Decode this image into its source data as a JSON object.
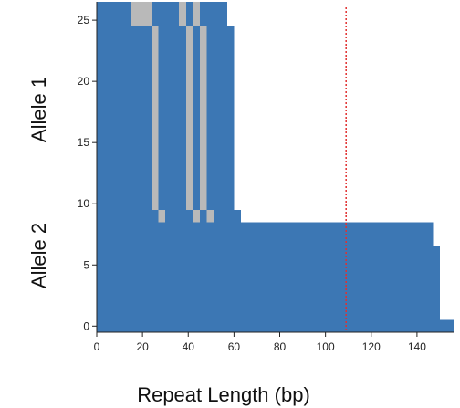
{
  "chart_data": {
    "type": "heatmap",
    "title": "",
    "xlabel": "Repeat Length (bp)",
    "ylabel_groups": [
      {
        "label": "Allele 1",
        "rows_from": 9,
        "rows_to": 26
      },
      {
        "label": "Allele 2",
        "rows_from": 0,
        "rows_to": 8
      }
    ],
    "xlim": [
      0,
      156
    ],
    "ylim": [
      -0.5,
      26.5
    ],
    "xticks": [
      0,
      20,
      40,
      60,
      80,
      100,
      120,
      140
    ],
    "yticks": [
      0,
      5,
      10,
      15,
      20,
      25
    ],
    "reference_line": {
      "x": 109,
      "color": "#e03030",
      "style": "dotted"
    },
    "colors": {
      "repeat": "#3c77b4",
      "interruption": "#b9b9b9"
    },
    "rows": [
      {
        "row": 0,
        "length": 156,
        "interruptions": []
      },
      {
        "row": 1,
        "length": 150,
        "interruptions": []
      },
      {
        "row": 2,
        "length": 150,
        "interruptions": []
      },
      {
        "row": 3,
        "length": 150,
        "interruptions": []
      },
      {
        "row": 4,
        "length": 150,
        "interruptions": []
      },
      {
        "row": 5,
        "length": 150,
        "interruptions": []
      },
      {
        "row": 6,
        "length": 150,
        "interruptions": []
      },
      {
        "row": 7,
        "length": 147,
        "interruptions": []
      },
      {
        "row": 8,
        "length": 147,
        "interruptions": []
      },
      {
        "row": 9,
        "length": 63,
        "interruptions": [
          [
            27,
            30
          ],
          [
            42,
            45
          ],
          [
            48,
            51
          ]
        ]
      },
      {
        "row": 10,
        "length": 60,
        "interruptions": [
          [
            24,
            27
          ],
          [
            39,
            42
          ],
          [
            45,
            48
          ]
        ]
      },
      {
        "row": 11,
        "length": 60,
        "interruptions": [
          [
            24,
            27
          ],
          [
            39,
            42
          ],
          [
            45,
            48
          ]
        ]
      },
      {
        "row": 12,
        "length": 60,
        "interruptions": [
          [
            24,
            27
          ],
          [
            39,
            42
          ],
          [
            45,
            48
          ]
        ]
      },
      {
        "row": 13,
        "length": 60,
        "interruptions": [
          [
            24,
            27
          ],
          [
            39,
            42
          ],
          [
            45,
            48
          ]
        ]
      },
      {
        "row": 14,
        "length": 60,
        "interruptions": [
          [
            24,
            27
          ],
          [
            39,
            42
          ],
          [
            45,
            48
          ]
        ]
      },
      {
        "row": 15,
        "length": 60,
        "interruptions": [
          [
            24,
            27
          ],
          [
            39,
            42
          ],
          [
            45,
            48
          ]
        ]
      },
      {
        "row": 16,
        "length": 60,
        "interruptions": [
          [
            24,
            27
          ],
          [
            39,
            42
          ],
          [
            45,
            48
          ]
        ]
      },
      {
        "row": 17,
        "length": 60,
        "interruptions": [
          [
            24,
            27
          ],
          [
            39,
            42
          ],
          [
            45,
            48
          ]
        ]
      },
      {
        "row": 18,
        "length": 60,
        "interruptions": [
          [
            24,
            27
          ],
          [
            39,
            42
          ],
          [
            45,
            48
          ]
        ]
      },
      {
        "row": 19,
        "length": 60,
        "interruptions": [
          [
            24,
            27
          ],
          [
            39,
            42
          ],
          [
            45,
            48
          ]
        ]
      },
      {
        "row": 20,
        "length": 60,
        "interruptions": [
          [
            24,
            27
          ],
          [
            39,
            42
          ],
          [
            45,
            48
          ]
        ]
      },
      {
        "row": 21,
        "length": 60,
        "interruptions": [
          [
            24,
            27
          ],
          [
            39,
            42
          ],
          [
            45,
            48
          ]
        ]
      },
      {
        "row": 22,
        "length": 60,
        "interruptions": [
          [
            24,
            27
          ],
          [
            39,
            42
          ],
          [
            45,
            48
          ]
        ]
      },
      {
        "row": 23,
        "length": 60,
        "interruptions": [
          [
            24,
            27
          ],
          [
            39,
            42
          ],
          [
            45,
            48
          ]
        ]
      },
      {
        "row": 24,
        "length": 60,
        "interruptions": [
          [
            24,
            27
          ],
          [
            39,
            42
          ],
          [
            45,
            48
          ]
        ]
      },
      {
        "row": 25,
        "length": 57,
        "interruptions": [
          [
            15,
            24
          ],
          [
            36,
            39
          ],
          [
            42,
            45
          ]
        ]
      },
      {
        "row": 26,
        "length": 57,
        "interruptions": [
          [
            15,
            24
          ],
          [
            36,
            39
          ],
          [
            42,
            45
          ]
        ]
      }
    ]
  }
}
